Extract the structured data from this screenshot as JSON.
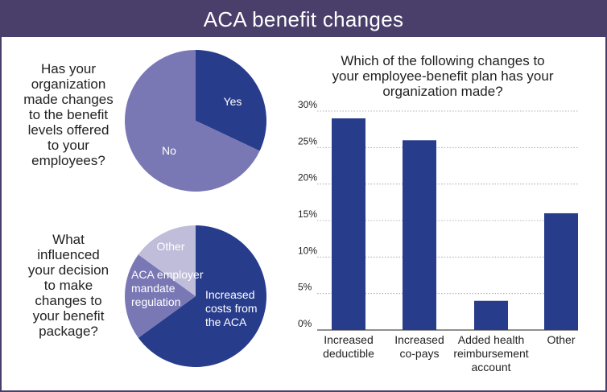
{
  "title": "ACA benefit changes",
  "colors": {
    "dark_blue": "#283c8c",
    "mid_purple": "#7a78b4",
    "light_purple": "#bfbdd9",
    "header_bg": "#4a3f6b"
  },
  "chart_data": [
    {
      "type": "pie",
      "title": "Has your organization made changes to the benefit levels offered to your employees?",
      "slices": [
        {
          "label": "Yes",
          "value": 32,
          "color": "#283c8c"
        },
        {
          "label": "No",
          "value": 68,
          "color": "#7a78b4"
        }
      ]
    },
    {
      "type": "pie",
      "title": "What influenced your decision to make changes to your benefit package?",
      "slices": [
        {
          "label": "Increased costs from the ACA",
          "value": 65,
          "color": "#283c8c"
        },
        {
          "label": "ACA employer mandate regulation",
          "value": 20,
          "color": "#7a78b4"
        },
        {
          "label": "Other",
          "value": 15,
          "color": "#bfbdd9"
        }
      ]
    },
    {
      "type": "bar",
      "title": "Which of the following changes to your employee-benefit plan has your organization made?",
      "categories": [
        "Increased deductible",
        "Increased co-pays",
        "Added health reimbursement account",
        "Other"
      ],
      "values": [
        29,
        26,
        4,
        16
      ],
      "ylim": [
        0,
        30
      ],
      "yticks": [
        "0%",
        "5%",
        "10%",
        "15%",
        "20%",
        "25%",
        "30%"
      ],
      "grid": true,
      "color": "#283c8c"
    }
  ]
}
